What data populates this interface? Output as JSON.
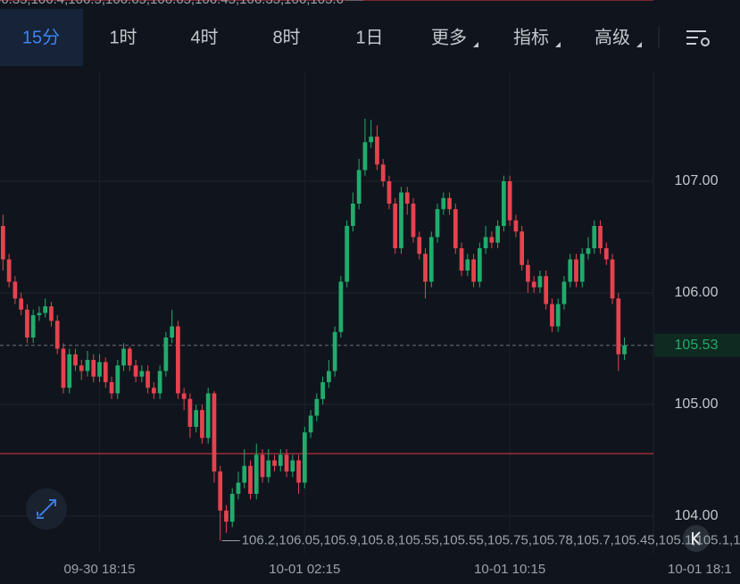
{
  "tabs": [
    "15分",
    "1时",
    "4时",
    "8时",
    "1日",
    "更多",
    "指标",
    "高级"
  ],
  "active_tab": 0,
  "chart_data": {
    "type": "candlestick",
    "up_color": "#22ab6c",
    "down_color": "#e4434f",
    "ylim": [
      103.664,
      107.984
    ],
    "yticks": [
      {
        "value": 104,
        "label": "104.00"
      },
      {
        "value": 105,
        "label": "105.00"
      },
      {
        "value": 106,
        "label": "106.00"
      },
      {
        "value": 107,
        "label": "107.00"
      }
    ],
    "xlim": [
      -0.5,
      107.8
    ],
    "xticks": [
      {
        "value": 16,
        "label": "09-30 18:15"
      },
      {
        "value": 50,
        "label": "10-01 02:15"
      },
      {
        "value": 84,
        "label": "10-01 10:15"
      },
      {
        "value": 118,
        "label": "10-01 18:1"
      }
    ],
    "high": [
      106.7,
      106.35,
      106.15,
      106.0,
      105.9,
      105.85,
      105.88,
      105.95,
      105.92,
      105.8,
      105.55,
      105.5,
      105.5,
      105.4,
      105.48,
      105.45,
      105.45,
      105.42,
      105.25,
      105.4,
      105.55,
      105.52,
      105.4,
      105.35,
      105.35,
      105.2,
      105.35,
      105.65,
      105.85,
      105.75,
      105.15,
      105.1,
      105.0,
      105.0,
      105.15,
      105.12,
      104.45,
      104.1,
      104.25,
      104.4,
      104.6,
      104.5,
      104.65,
      104.6,
      104.6,
      104.55,
      104.6,
      104.6,
      104.55,
      104.55,
      104.8,
      104.95,
      105.1,
      105.25,
      105.4,
      105.7,
      106.15,
      106.65,
      106.9,
      107.2,
      107.56,
      107.55,
      107.5,
      107.2,
      107.05,
      106.85,
      106.95,
      106.95,
      106.85,
      106.55,
      106.4,
      106.55,
      106.8,
      106.9,
      106.9,
      106.8,
      106.45,
      106.35,
      106.35,
      106.45,
      106.6,
      106.55,
      106.65,
      107.05,
      107.05,
      106.7,
      106.6,
      106.3,
      106.15,
      106.2,
      106.2,
      105.95,
      105.95,
      106.15,
      106.35,
      106.35,
      106.4,
      106.5,
      106.65,
      106.65,
      106.45,
      106.35,
      106.0,
      105.6
    ],
    "low": [
      106.2,
      106.05,
      105.9,
      105.8,
      105.55,
      105.55,
      105.75,
      105.78,
      105.7,
      105.45,
      105.1,
      105.1,
      105.3,
      105.22,
      105.25,
      105.2,
      105.2,
      105.15,
      105.05,
      105.05,
      105.3,
      105.3,
      105.2,
      105.2,
      105.1,
      105.05,
      105.05,
      105.25,
      105.55,
      105.05,
      104.95,
      104.7,
      104.75,
      104.65,
      104.65,
      104.3,
      103.78,
      103.85,
      103.9,
      104.15,
      104.25,
      104.15,
      104.15,
      104.3,
      104.3,
      104.4,
      104.4,
      104.35,
      104.35,
      104.2,
      104.25,
      104.7,
      104.85,
      105.0,
      105.15,
      105.25,
      105.6,
      106.05,
      106.55,
      106.75,
      107.05,
      107.3,
      107.1,
      106.95,
      106.75,
      106.35,
      106.35,
      106.7,
      106.45,
      106.3,
      105.95,
      106.05,
      106.45,
      106.7,
      106.7,
      106.35,
      106.15,
      106.15,
      106.05,
      106.05,
      106.35,
      106.4,
      106.4,
      106.55,
      106.6,
      106.5,
      106.2,
      106.0,
      106.0,
      106.0,
      105.85,
      105.65,
      105.65,
      105.85,
      106.05,
      106.05,
      106.05,
      106.3,
      106.35,
      106.35,
      106.25,
      105.9,
      105.3,
      105.4
    ],
    "alert_level": 104.56,
    "last": 105.53,
    "open": [
      106.6,
      106.3,
      106.1,
      105.95,
      105.85,
      105.6,
      105.8,
      105.82,
      105.88,
      105.75,
      105.5,
      105.15,
      105.45,
      105.35,
      105.3,
      105.4,
      105.25,
      105.38,
      105.2,
      105.1,
      105.35,
      105.5,
      105.35,
      105.25,
      105.3,
      105.15,
      105.1,
      105.3,
      105.6,
      105.7,
      105.1,
      105.05,
      104.8,
      104.95,
      104.7,
      105.1,
      104.4,
      104.05,
      103.95,
      104.2,
      104.3,
      104.45,
      104.2,
      104.55,
      104.35,
      104.5,
      104.45,
      104.55,
      104.4,
      104.5,
      104.3,
      104.75,
      104.9,
      105.05,
      105.2,
      105.3,
      105.65,
      106.1,
      106.6,
      106.8,
      107.1,
      107.35,
      107.4,
      107.15,
      107.0,
      106.8,
      106.4,
      106.9,
      106.8,
      106.5,
      106.35,
      106.1,
      106.5,
      106.75,
      106.85,
      106.75,
      106.4,
      106.2,
      106.3,
      106.1,
      106.4,
      106.5,
      106.45,
      106.6,
      107.0,
      106.65,
      106.55,
      106.25,
      106.1,
      106.05,
      106.15,
      105.9,
      105.7,
      105.9,
      106.1,
      106.3,
      106.1,
      106.35,
      106.4,
      106.6,
      106.4,
      106.3,
      105.95,
      105.45
    ],
    "close": [
      106.3,
      106.1,
      105.95,
      105.85,
      105.6,
      105.8,
      105.82,
      105.88,
      105.75,
      105.5,
      105.15,
      105.45,
      105.35,
      105.3,
      105.4,
      105.25,
      105.38,
      105.2,
      105.1,
      105.35,
      105.5,
      105.35,
      105.25,
      105.3,
      105.15,
      105.1,
      105.3,
      105.6,
      105.7,
      105.1,
      105.05,
      104.8,
      104.95,
      104.7,
      105.1,
      104.4,
      104.05,
      103.95,
      104.2,
      104.3,
      104.45,
      104.2,
      104.55,
      104.35,
      104.5,
      104.45,
      104.55,
      104.4,
      104.5,
      104.3,
      104.75,
      104.9,
      105.05,
      105.2,
      105.3,
      105.65,
      106.1,
      106.6,
      106.8,
      107.1,
      107.35,
      107.4,
      107.15,
      107.0,
      106.8,
      106.4,
      106.9,
      106.8,
      106.5,
      106.35,
      106.1,
      106.5,
      106.75,
      106.85,
      106.75,
      106.4,
      106.2,
      106.3,
      106.1,
      106.4,
      106.5,
      106.45,
      106.6,
      107.0,
      106.65,
      106.55,
      106.25,
      106.1,
      106.05,
      106.15,
      105.9,
      105.7,
      105.9,
      106.1,
      106.3,
      106.1,
      106.35,
      106.4,
      106.6,
      106.4,
      106.3,
      105.95,
      105.45,
      105.53
    ]
  }
}
